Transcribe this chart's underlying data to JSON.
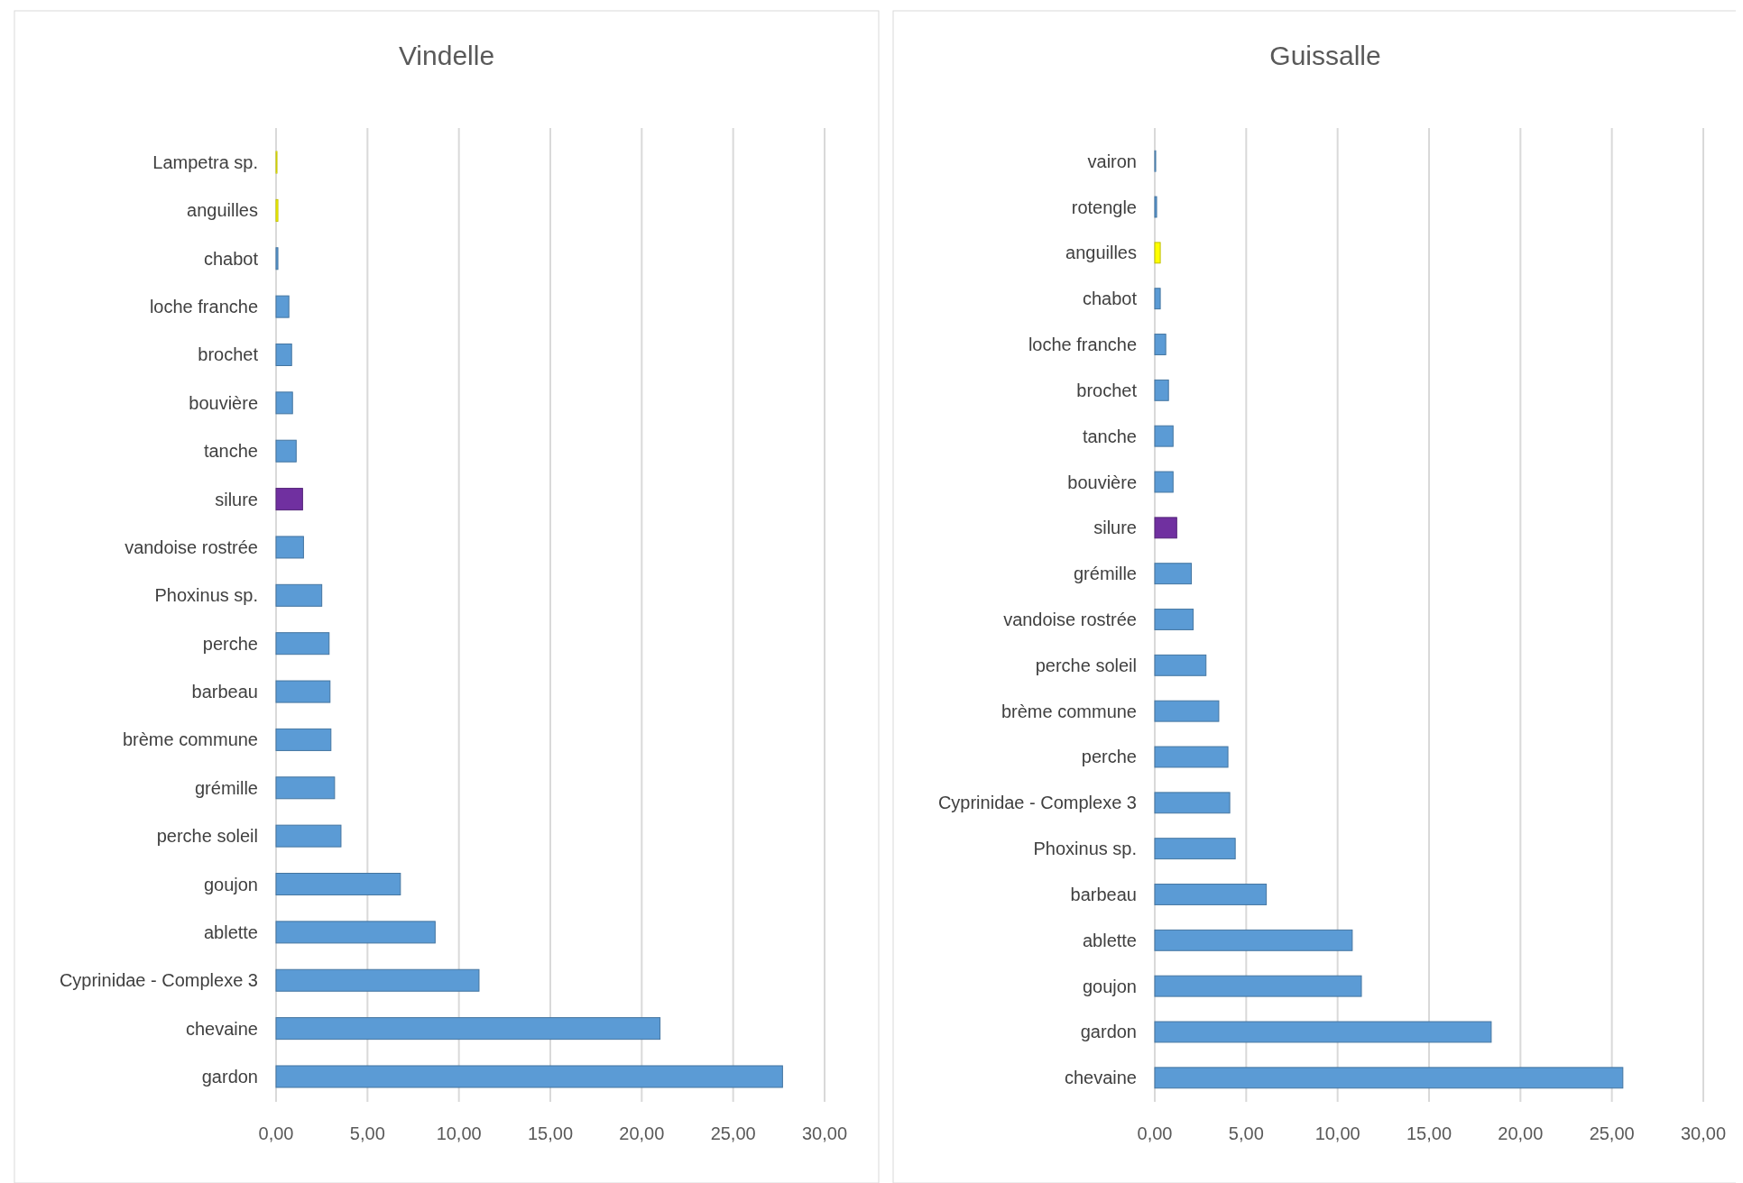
{
  "chart_data": [
    {
      "type": "bar",
      "orientation": "horizontal",
      "title": "Vindelle",
      "categories": [
        "Lampetra sp.",
        "anguilles",
        "chabot",
        "loche franche",
        "brochet",
        "bouvière",
        "tanche",
        "silure",
        "vandoise rostrée",
        "Phoxinus sp.",
        "perche",
        "barbeau",
        "brème commune",
        "grémille",
        "perche soleil",
        "goujon",
        "ablette",
        "Cyprinidae - Complexe 3",
        "chevaine",
        "gardon"
      ],
      "values": [
        0.05,
        0.1,
        0.1,
        0.7,
        0.85,
        0.9,
        1.1,
        1.45,
        1.5,
        2.5,
        2.9,
        2.95,
        3.0,
        3.2,
        3.55,
        6.8,
        8.7,
        11.1,
        21.0,
        27.7
      ],
      "colors": [
        "#ffff00",
        "#ffff00",
        "#5b9bd5",
        "#5b9bd5",
        "#5b9bd5",
        "#5b9bd5",
        "#5b9bd5",
        "#7030a0",
        "#5b9bd5",
        "#5b9bd5",
        "#5b9bd5",
        "#5b9bd5",
        "#5b9bd5",
        "#5b9bd5",
        "#5b9bd5",
        "#5b9bd5",
        "#5b9bd5",
        "#5b9bd5",
        "#5b9bd5",
        "#5b9bd5"
      ],
      "xlim": [
        0,
        30
      ],
      "xticks": [
        {
          "value": 0,
          "label": "0,00"
        },
        {
          "value": 5,
          "label": "5,00"
        },
        {
          "value": 10,
          "label": "10,00"
        },
        {
          "value": 15,
          "label": "15,00"
        },
        {
          "value": 20,
          "label": "20,00"
        },
        {
          "value": 25,
          "label": "25,00"
        },
        {
          "value": 30,
          "label": "30,00"
        }
      ],
      "grid": "x"
    },
    {
      "type": "bar",
      "orientation": "horizontal",
      "title": "Guissalle",
      "categories": [
        "vairon",
        "rotengle",
        "anguilles",
        "chabot",
        "loche franche",
        "brochet",
        "tanche",
        "bouvière",
        "silure",
        "grémille",
        "vandoise rostrée",
        "perche soleil",
        "brème commune",
        "perche",
        "Cyprinidae - Complexe 3",
        "Phoxinus sp.",
        "barbeau",
        "ablette",
        "goujon",
        "gardon",
        "chevaine"
      ],
      "values": [
        0.05,
        0.1,
        0.3,
        0.3,
        0.6,
        0.75,
        1.0,
        1.0,
        1.2,
        2.0,
        2.1,
        2.8,
        3.5,
        4.0,
        4.1,
        4.4,
        6.1,
        10.8,
        11.3,
        18.4,
        25.6
      ],
      "colors": [
        "#5b9bd5",
        "#5b9bd5",
        "#ffff00",
        "#5b9bd5",
        "#5b9bd5",
        "#5b9bd5",
        "#5b9bd5",
        "#5b9bd5",
        "#7030a0",
        "#5b9bd5",
        "#5b9bd5",
        "#5b9bd5",
        "#5b9bd5",
        "#5b9bd5",
        "#5b9bd5",
        "#5b9bd5",
        "#5b9bd5",
        "#5b9bd5",
        "#5b9bd5",
        "#5b9bd5",
        "#5b9bd5"
      ],
      "xlim": [
        0,
        30
      ],
      "xticks": [
        {
          "value": 0,
          "label": "0,00"
        },
        {
          "value": 5,
          "label": "5,00"
        },
        {
          "value": 10,
          "label": "10,00"
        },
        {
          "value": 15,
          "label": "15,00"
        },
        {
          "value": 20,
          "label": "20,00"
        },
        {
          "value": 25,
          "label": "25,00"
        },
        {
          "value": 30,
          "label": "30,00"
        }
      ],
      "grid": "x"
    }
  ]
}
